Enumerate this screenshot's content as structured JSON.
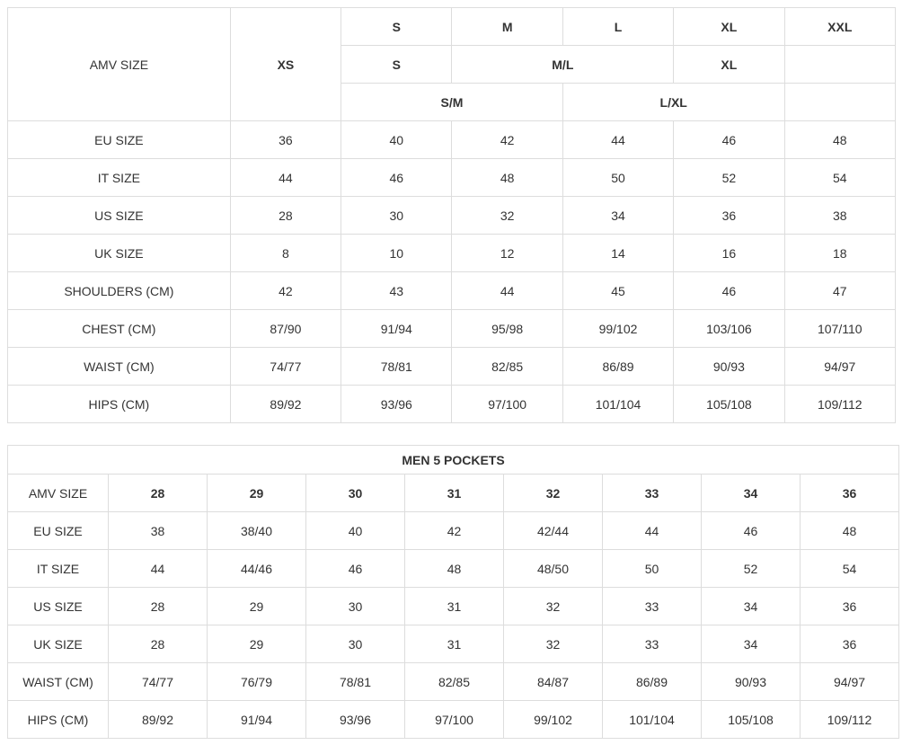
{
  "page": {
    "background_color": "#ffffff",
    "text_color": "#333333",
    "border_color": "#dddddd"
  },
  "size_chart": {
    "label_header": "AMV SIZE",
    "header_rows": {
      "row1": [
        "XS",
        "S",
        "M",
        "L",
        "XL",
        "XXL"
      ],
      "row2": [
        "S",
        "M/L",
        "XL",
        ""
      ],
      "row3": [
        "S/M",
        "L/XL",
        ""
      ]
    },
    "rows": [
      {
        "label": "EU SIZE",
        "cells": [
          "36",
          "40",
          "42",
          "44",
          "46",
          "48"
        ]
      },
      {
        "label": "IT SIZE",
        "cells": [
          "44",
          "46",
          "48",
          "50",
          "52",
          "54"
        ]
      },
      {
        "label": "US SIZE",
        "cells": [
          "28",
          "30",
          "32",
          "34",
          "36",
          "38"
        ]
      },
      {
        "label": "UK SIZE",
        "cells": [
          "8",
          "10",
          "12",
          "14",
          "16",
          "18"
        ]
      },
      {
        "label": "SHOULDERS (CM)",
        "cells": [
          "42",
          "43",
          "44",
          "45",
          "46",
          "47"
        ]
      },
      {
        "label": "CHEST (CM)",
        "cells": [
          "87/90",
          "91/94",
          "95/98",
          "99/102",
          "103/106",
          "107/110"
        ]
      },
      {
        "label": "WAIST (CM)",
        "cells": [
          "74/77",
          "78/81",
          "82/85",
          "86/89",
          "90/93",
          "94/97"
        ]
      },
      {
        "label": "HIPS (CM)",
        "cells": [
          "89/92",
          "93/96",
          "97/100",
          "101/104",
          "105/108",
          "109/112"
        ]
      }
    ]
  },
  "men_5_pockets": {
    "title": "MEN 5 POCKETS",
    "label_header": "AMV SIZE",
    "sizes": [
      "28",
      "29",
      "30",
      "31",
      "32",
      "33",
      "34",
      "36"
    ],
    "rows": [
      {
        "label": "EU SIZE",
        "cells": [
          "38",
          "38/40",
          "40",
          "42",
          "42/44",
          "44",
          "46",
          "48"
        ]
      },
      {
        "label": "IT SIZE",
        "cells": [
          "44",
          "44/46",
          "46",
          "48",
          "48/50",
          "50",
          "52",
          "54"
        ]
      },
      {
        "label": "US SIZE",
        "cells": [
          "28",
          "29",
          "30",
          "31",
          "32",
          "33",
          "34",
          "36"
        ]
      },
      {
        "label": "UK SIZE",
        "cells": [
          "28",
          "29",
          "30",
          "31",
          "32",
          "33",
          "34",
          "36"
        ]
      },
      {
        "label": "WAIST (CM)",
        "cells": [
          "74/77",
          "76/79",
          "78/81",
          "82/85",
          "84/87",
          "86/89",
          "90/93",
          "94/97"
        ]
      },
      {
        "label": "HIPS (CM)",
        "cells": [
          "89/92",
          "91/94",
          "93/96",
          "97/100",
          "99/102",
          "101/104",
          "105/108",
          "109/112"
        ]
      }
    ]
  }
}
